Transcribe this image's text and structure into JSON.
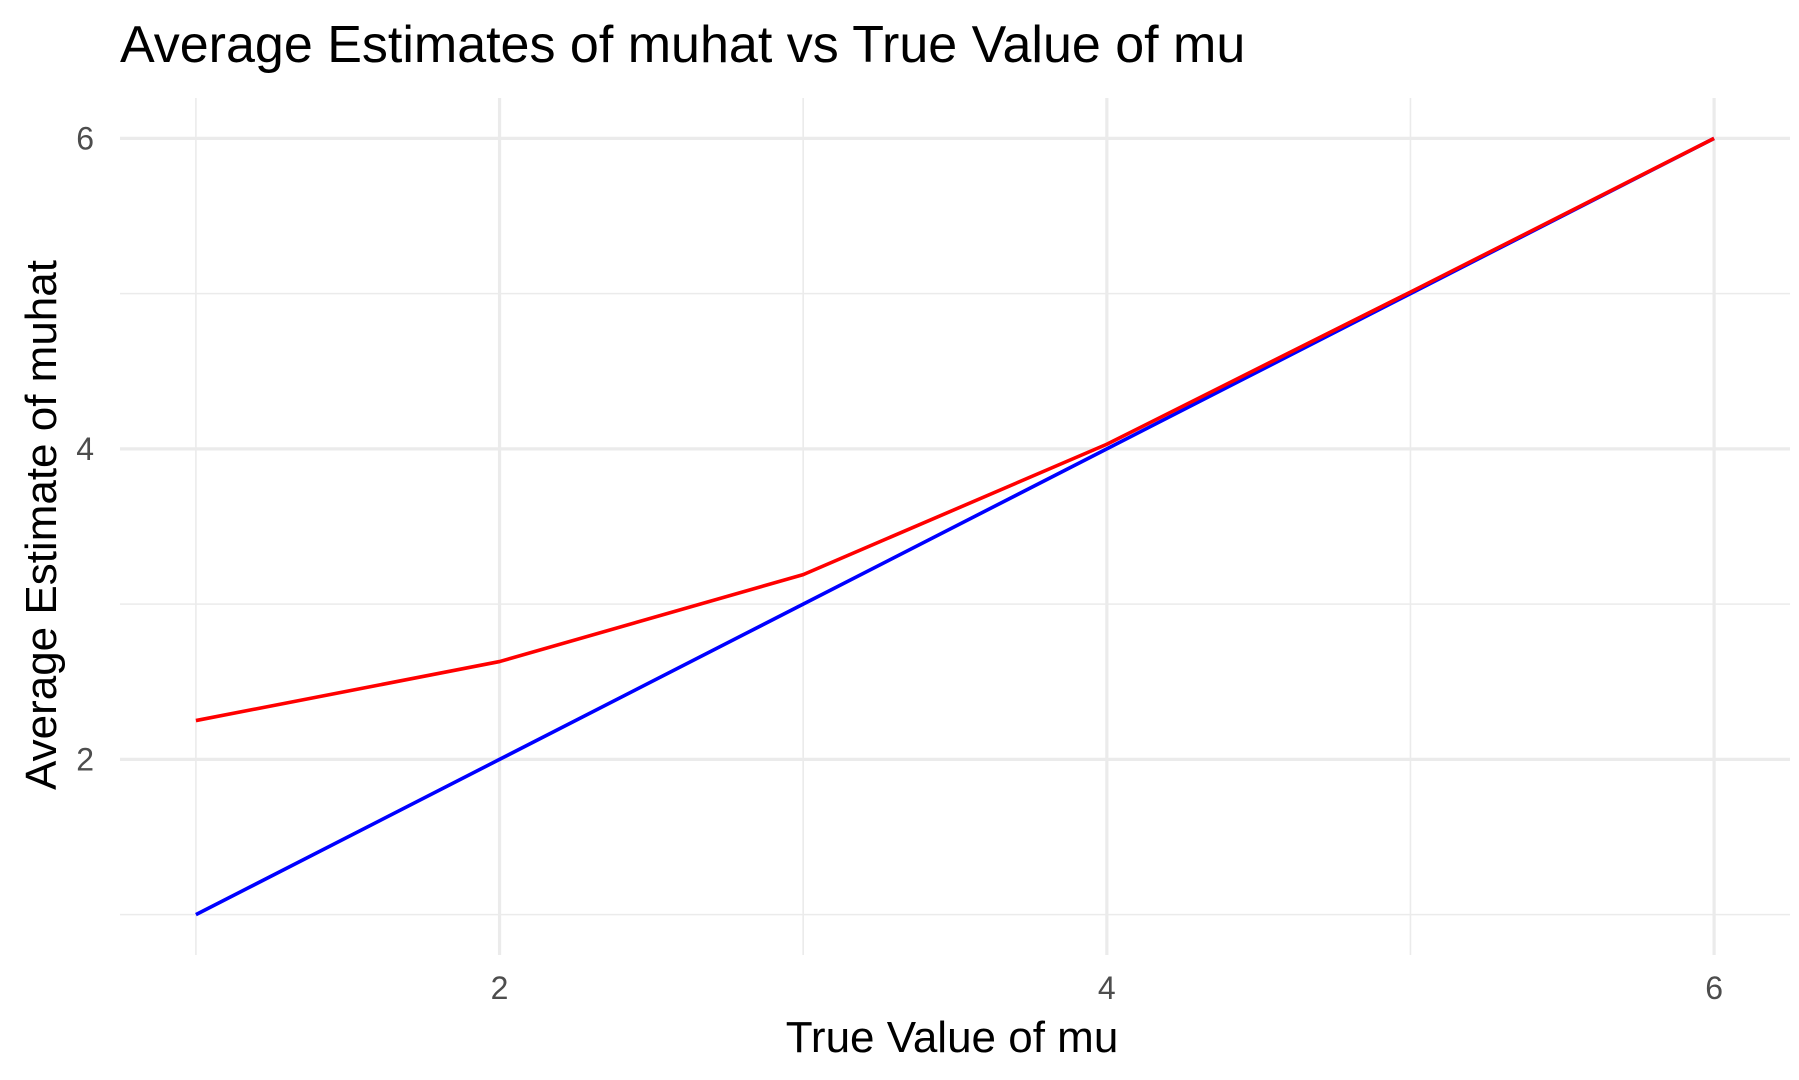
{
  "chart_data": {
    "type": "line",
    "title": "Average Estimates of muhat vs True Value of mu",
    "xlabel": "True Value of mu",
    "ylabel": "Average Estimate of muhat",
    "xlim": [
      0.75,
      6.25
    ],
    "ylim": [
      0.74,
      6.26
    ],
    "x_ticks": [
      2,
      4,
      6
    ],
    "y_ticks": [
      2,
      4,
      6
    ],
    "x_minor_ticks": [
      1,
      3,
      5
    ],
    "y_minor_ticks": [
      1,
      3,
      5
    ],
    "grid": true,
    "legend": "none",
    "series": [
      {
        "color": "#0000ff",
        "x": [
          1,
          2,
          3,
          4,
          5,
          6
        ],
        "values": [
          1,
          2,
          3,
          4,
          5,
          6
        ]
      },
      {
        "color": "#ff0000",
        "x": [
          1,
          2,
          3,
          4,
          5,
          6
        ],
        "values": [
          2.25,
          2.63,
          3.19,
          4.03,
          5.01,
          6.0
        ]
      }
    ]
  }
}
